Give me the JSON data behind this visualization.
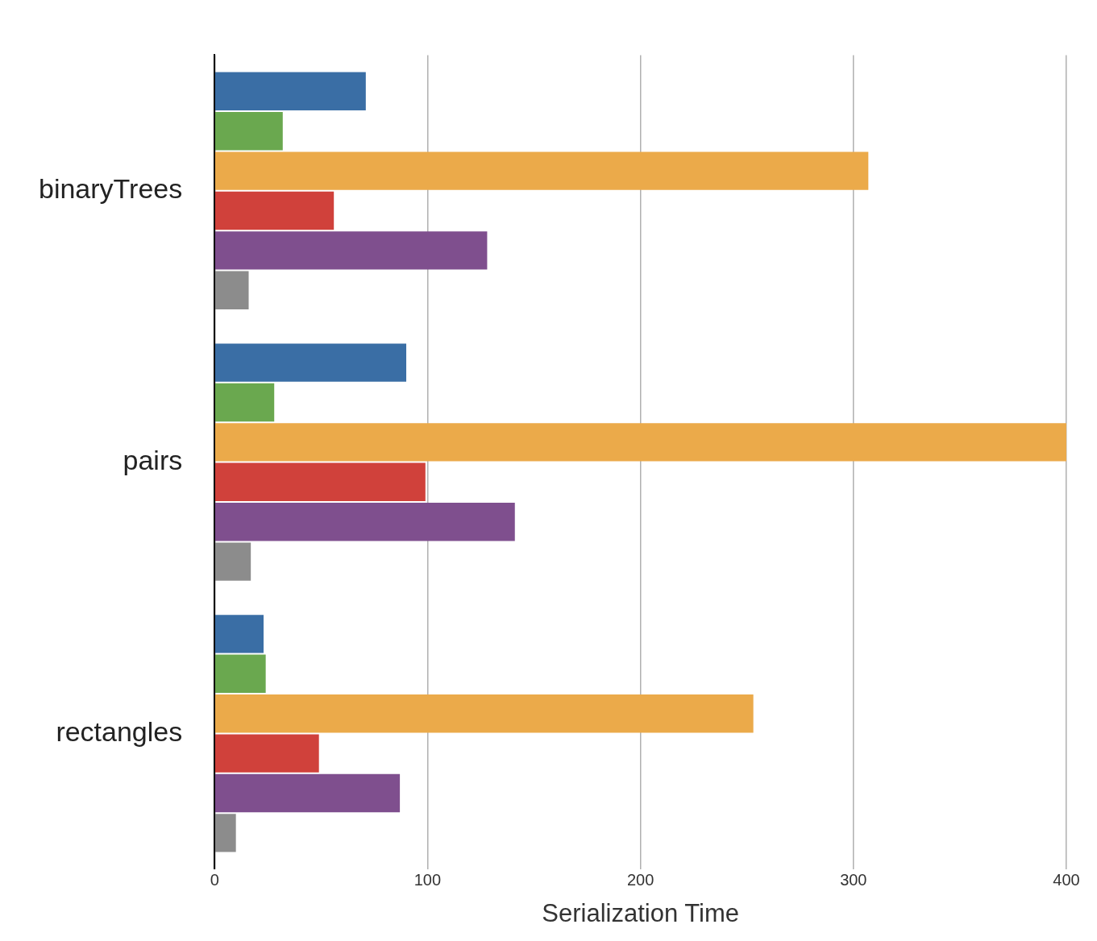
{
  "chart_data": {
    "type": "bar",
    "orientation": "horizontal",
    "xlabel": "Serialization Time",
    "categories": [
      "binaryTrees",
      "pairs",
      "rectangles"
    ],
    "series": [
      {
        "color": "#3a6ea5",
        "values": [
          71,
          90,
          23
        ]
      },
      {
        "color": "#6aa84f",
        "values": [
          32,
          28,
          24
        ]
      },
      {
        "color": "#ebaa4a",
        "values": [
          307,
          400,
          253
        ]
      },
      {
        "color": "#d0413b",
        "values": [
          56,
          99,
          49
        ]
      },
      {
        "color": "#7f4f8e",
        "values": [
          128,
          141,
          87
        ]
      },
      {
        "color": "#8c8c8c",
        "values": [
          16,
          17,
          10
        ]
      }
    ],
    "xlim": [
      0,
      400
    ],
    "xticks": [
      0,
      100,
      200,
      300,
      400
    ],
    "grid": "x",
    "legend": false
  }
}
